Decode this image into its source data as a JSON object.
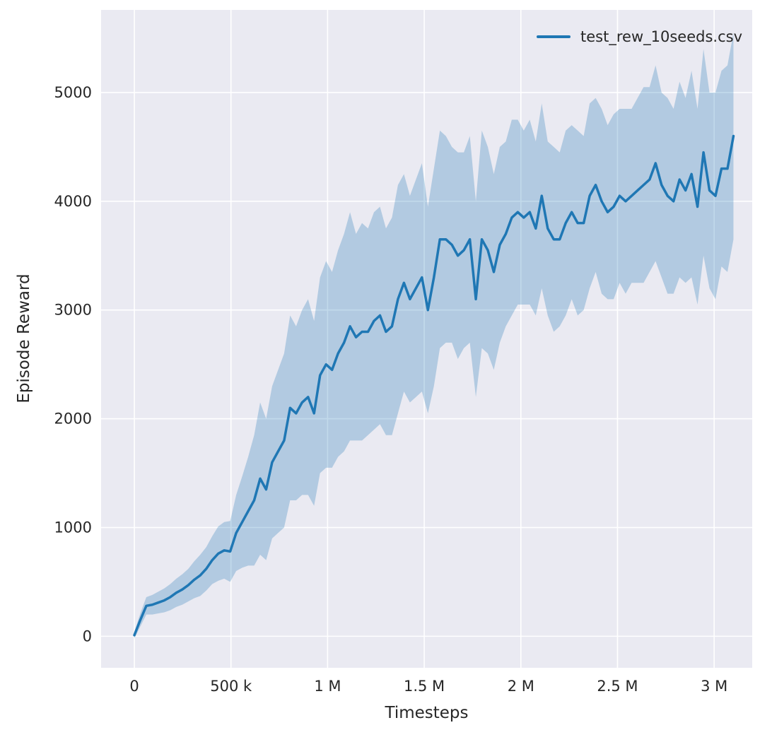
{
  "chart_data": {
    "type": "line",
    "title": "",
    "xlabel": "Timesteps",
    "ylabel": "Episode Reward",
    "grid": true,
    "legend_position": "upper right",
    "xlim": [
      -172000,
      3197000
    ],
    "ylim": [
      -290,
      5760
    ],
    "xticks": {
      "values": [
        0,
        500000,
        1000000,
        1500000,
        2000000,
        2500000,
        3000000
      ],
      "labels": [
        "0",
        "500 k",
        "1 M",
        "1.5 M",
        "2 M",
        "2.5 M",
        "3 M"
      ]
    },
    "yticks": {
      "values": [
        0,
        1000,
        2000,
        3000,
        4000,
        5000
      ],
      "labels": [
        "0",
        "1000",
        "2000",
        "3000",
        "4000",
        "5000"
      ]
    },
    "colors": {
      "figure_bg": "#ffffff",
      "plot_bg": "#eaeaf2",
      "grid": "#ffffff",
      "line": "#1f77b4",
      "band": "#1f77b4",
      "band_opacity": 0.27,
      "text": "#262626"
    },
    "series": [
      {
        "name": "test_rew_10seeds.csv",
        "color": "#1f77b4",
        "x": [
          0,
          31000,
          62000,
          93000,
          124000,
          155000,
          186000,
          217000,
          248000,
          279000,
          310000,
          341000,
          372000,
          403000,
          434000,
          465000,
          496000,
          527000,
          558000,
          589000,
          620000,
          651000,
          682000,
          713000,
          744000,
          775000,
          806000,
          837000,
          868000,
          899000,
          930000,
          961000,
          992000,
          1023000,
          1054000,
          1085000,
          1116000,
          1147000,
          1178000,
          1209000,
          1240000,
          1271000,
          1302000,
          1333000,
          1364000,
          1395000,
          1426000,
          1457000,
          1488000,
          1519000,
          1550000,
          1581000,
          1612000,
          1643000,
          1674000,
          1705000,
          1736000,
          1767000,
          1798000,
          1829000,
          1860000,
          1891000,
          1922000,
          1953000,
          1984000,
          2015000,
          2046000,
          2077000,
          2108000,
          2139000,
          2170000,
          2201000,
          2232000,
          2263000,
          2294000,
          2325000,
          2356000,
          2387000,
          2418000,
          2449000,
          2480000,
          2511000,
          2542000,
          2573000,
          2604000,
          2635000,
          2666000,
          2697000,
          2728000,
          2759000,
          2790000,
          2821000,
          2852000,
          2883000,
          2914000,
          2945000,
          2976000,
          3007000,
          3038000,
          3069000,
          3100000
        ],
        "mean": [
          10,
          150,
          280,
          290,
          310,
          330,
          360,
          400,
          430,
          470,
          520,
          560,
          620,
          700,
          760,
          790,
          780,
          950,
          1050,
          1150,
          1250,
          1450,
          1350,
          1600,
          1700,
          1800,
          2100,
          2050,
          2150,
          2200,
          2050,
          2400,
          2500,
          2450,
          2600,
          2700,
          2850,
          2750,
          2800,
          2800,
          2900,
          2950,
          2800,
          2850,
          3100,
          3250,
          3100,
          3200,
          3300,
          3000,
          3300,
          3650,
          3650,
          3600,
          3500,
          3550,
          3650,
          3100,
          3650,
          3550,
          3350,
          3600,
          3700,
          3850,
          3900,
          3850,
          3900,
          3750,
          4050,
          3750,
          3650,
          3650,
          3800,
          3900,
          3800,
          3800,
          4050,
          4150,
          4000,
          3900,
          3950,
          4050,
          4000,
          4050,
          4100,
          4150,
          4200,
          4350,
          4150,
          4050,
          4000,
          4200,
          4100,
          4250,
          3950,
          4450,
          4100,
          4050,
          4300,
          4300,
          4600
        ],
        "band_lower": [
          -20,
          90,
          200,
          200,
          210,
          220,
          240,
          270,
          290,
          320,
          350,
          370,
          420,
          480,
          510,
          530,
          500,
          600,
          630,
          650,
          650,
          750,
          700,
          900,
          950,
          1000,
          1250,
          1250,
          1300,
          1300,
          1200,
          1500,
          1550,
          1550,
          1650,
          1700,
          1800,
          1800,
          1800,
          1850,
          1900,
          1950,
          1850,
          1850,
          2050,
          2250,
          2150,
          2200,
          2250,
          2050,
          2300,
          2650,
          2700,
          2700,
          2550,
          2650,
          2700,
          2200,
          2650,
          2600,
          2450,
          2700,
          2850,
          2950,
          3050,
          3050,
          3050,
          2950,
          3200,
          2950,
          2800,
          2850,
          2950,
          3100,
          2950,
          3000,
          3200,
          3350,
          3150,
          3100,
          3100,
          3250,
          3150,
          3250,
          3250,
          3250,
          3350,
          3450,
          3300,
          3150,
          3150,
          3300,
          3250,
          3300,
          3050,
          3500,
          3200,
          3100,
          3400,
          3350,
          3650
        ],
        "band_upper": [
          40,
          210,
          360,
          380,
          410,
          440,
          480,
          530,
          570,
          620,
          690,
          750,
          820,
          920,
          1010,
          1050,
          1060,
          1300,
          1470,
          1650,
          1850,
          2150,
          2000,
          2300,
          2450,
          2600,
          2950,
          2850,
          3000,
          3100,
          2900,
          3300,
          3450,
          3350,
          3550,
          3700,
          3900,
          3700,
          3800,
          3750,
          3900,
          3950,
          3750,
          3850,
          4150,
          4250,
          4050,
          4200,
          4350,
          3950,
          4300,
          4650,
          4600,
          4500,
          4450,
          4450,
          4600,
          4000,
          4650,
          4500,
          4250,
          4500,
          4550,
          4750,
          4750,
          4650,
          4750,
          4550,
          4900,
          4550,
          4500,
          4450,
          4650,
          4700,
          4650,
          4600,
          4900,
          4950,
          4850,
          4700,
          4800,
          4850,
          4850,
          4850,
          4950,
          5050,
          5050,
          5250,
          5000,
          4950,
          4850,
          5100,
          4950,
          5200,
          4850,
          5400,
          5000,
          5000,
          5200,
          5250,
          5550
        ]
      }
    ]
  }
}
